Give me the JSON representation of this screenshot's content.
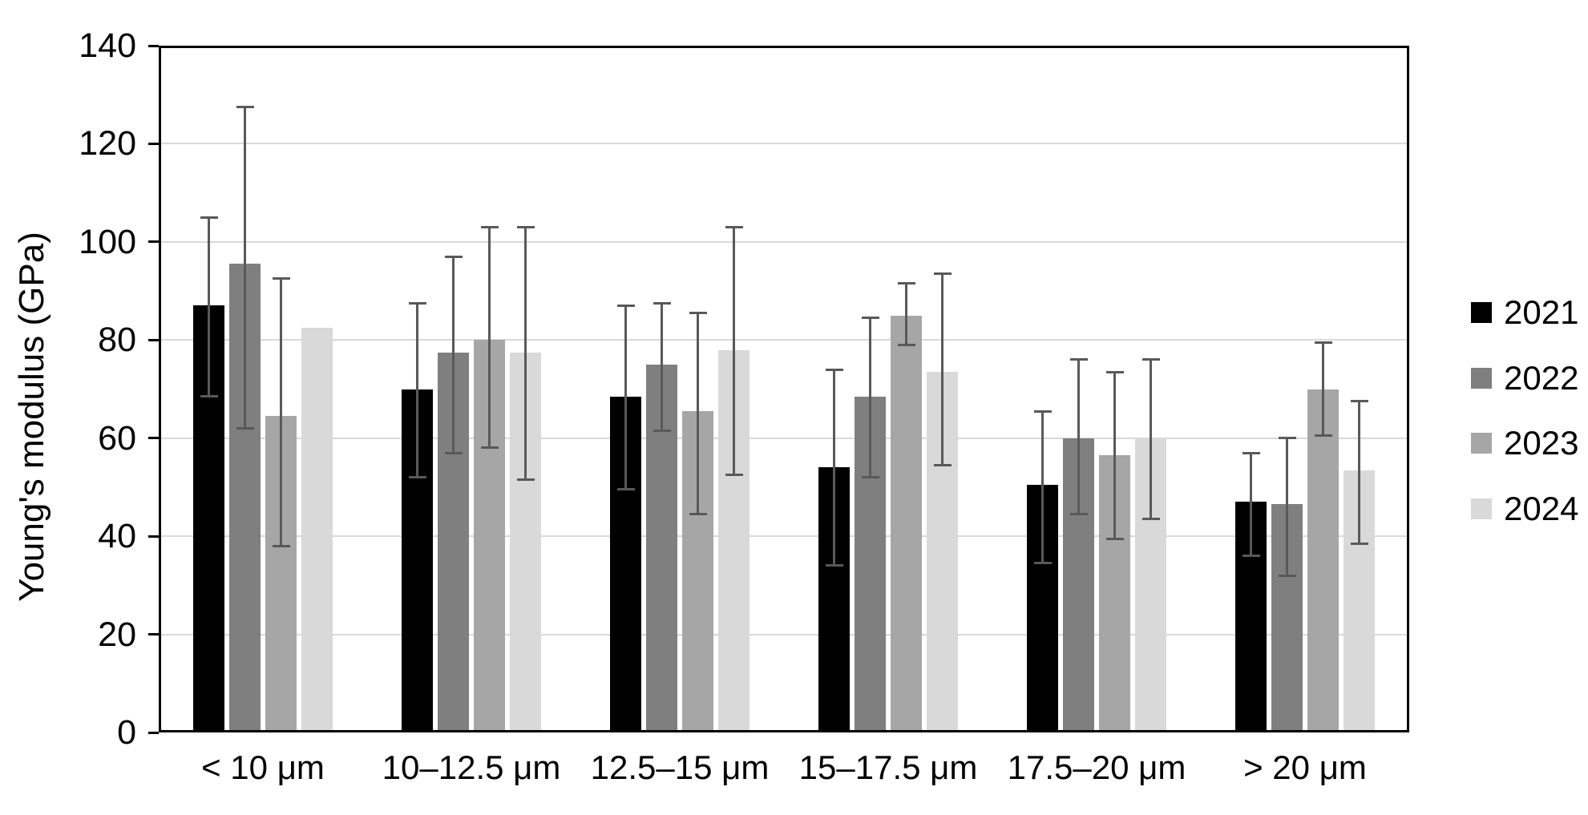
{
  "chart_data": {
    "type": "bar",
    "title": "",
    "xlabel": "",
    "ylabel": "Young's modulus (GPa)",
    "ylim": [
      0,
      140
    ],
    "yticks": [
      0,
      20,
      40,
      60,
      80,
      100,
      120,
      140
    ],
    "grid": "horizontal",
    "legend_position": "right",
    "categories": [
      "< 10 μm",
      "10–12.5 μm",
      "12.5–15 μm",
      "15–17.5 μm",
      "17.5–20 μm",
      "> 20 μm"
    ],
    "series": [
      {
        "name": "2021",
        "color": "#000000",
        "values": [
          87,
          70,
          68.5,
          54,
          50.5,
          47
        ],
        "err_hi": [
          105,
          87.5,
          87,
          74,
          65.5,
          57
        ],
        "err_lo": [
          68.5,
          52,
          49.5,
          34,
          34.5,
          36
        ]
      },
      {
        "name": "2022",
        "color": "#7f7f7f",
        "values": [
          95.5,
          77.5,
          75,
          68.5,
          60,
          46.5
        ],
        "err_hi": [
          127.5,
          97,
          87.5,
          84.5,
          76,
          60
        ],
        "err_lo": [
          62,
          57,
          61.5,
          52,
          44.5,
          32
        ]
      },
      {
        "name": "2023",
        "color": "#a6a6a6",
        "values": [
          64.5,
          80,
          65.5,
          85,
          56.5,
          70
        ],
        "err_hi": [
          92.5,
          103,
          85.5,
          91.5,
          73.5,
          79.5
        ],
        "err_lo": [
          38,
          58,
          44.5,
          79,
          39.5,
          60.5
        ]
      },
      {
        "name": "2024",
        "color": "#d9d9d9",
        "values": [
          82.5,
          77.5,
          78,
          73.5,
          60,
          53.5
        ],
        "err_hi": [
          null,
          103,
          103,
          93.5,
          76,
          67.5
        ],
        "err_lo": [
          null,
          51.5,
          52.5,
          54.5,
          43.5,
          38.5
        ]
      }
    ],
    "style": {
      "error_bar_color": "#595959",
      "gridline_color": "#d9d9d9",
      "axis_color": "#000000"
    }
  }
}
